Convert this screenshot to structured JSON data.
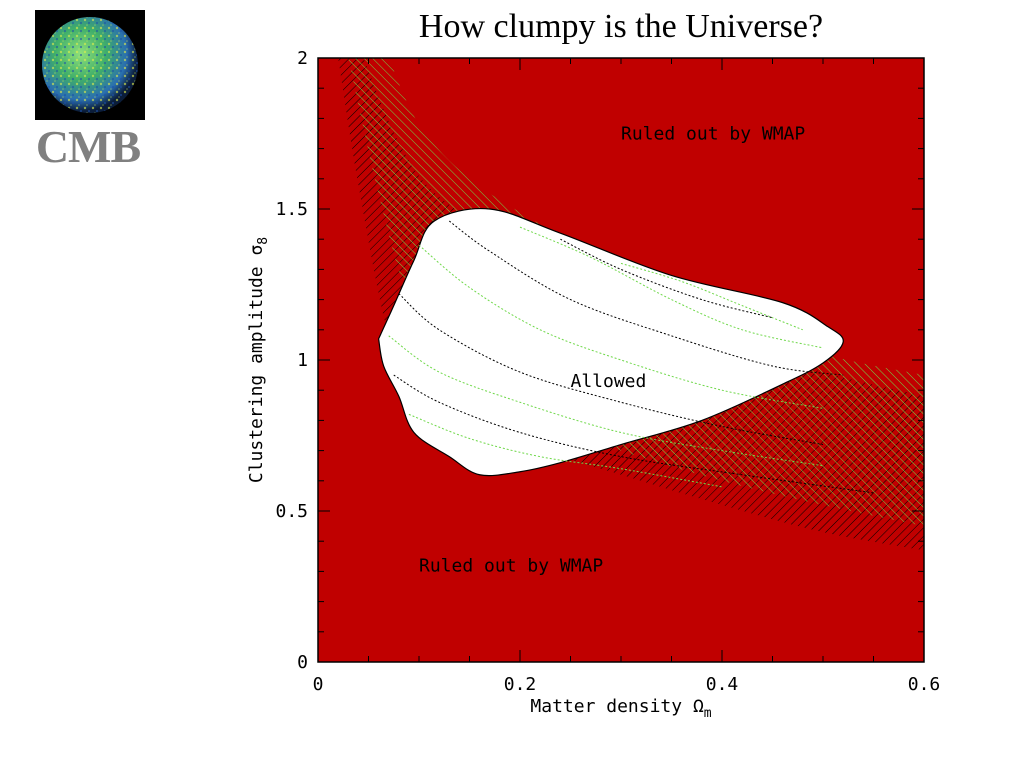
{
  "slide": {
    "title": "How clumpy is the Universe?",
    "logo_label": "CMB"
  },
  "colors": {
    "ruled_out": "#c00000",
    "allowed": "#ffffff",
    "hatch_black": "#000000",
    "hatch_green": "#6fd84a"
  },
  "chart_data": {
    "type": "area",
    "xlabel": "Matter density Ω",
    "xlabel_sub": "m",
    "ylabel": "Clustering amplitude σ",
    "ylabel_sub": "8",
    "xlim": [
      0,
      0.6
    ],
    "ylim": [
      0,
      2
    ],
    "x_ticks": [
      0,
      0.2,
      0.4,
      0.6
    ],
    "x_tick_labels": [
      "0",
      "0.2",
      "0.4",
      "0.6"
    ],
    "y_ticks": [
      0,
      0.5,
      1,
      1.5,
      2
    ],
    "y_tick_labels": [
      "0",
      "0.5",
      "1",
      "1.5",
      "2"
    ],
    "annotations": [
      {
        "text": "Ruled out by WMAP",
        "x": 0.3,
        "y": 1.73
      },
      {
        "text": "Ruled out by WMAP",
        "x": 0.1,
        "y": 0.3
      },
      {
        "text": "Allowed",
        "x": 0.25,
        "y": 0.91
      }
    ],
    "regions": [
      {
        "name": "Allowed",
        "fill": "#ffffff",
        "boundary": [
          [
            0.06,
            1.07
          ],
          [
            0.075,
            1.18
          ],
          [
            0.095,
            1.33
          ],
          [
            0.115,
            1.46
          ],
          [
            0.17,
            1.5
          ],
          [
            0.24,
            1.42
          ],
          [
            0.35,
            1.28
          ],
          [
            0.46,
            1.19
          ],
          [
            0.505,
            1.11
          ],
          [
            0.52,
            1.06
          ],
          [
            0.5,
            0.99
          ],
          [
            0.46,
            0.92
          ],
          [
            0.38,
            0.8
          ],
          [
            0.3,
            0.72
          ],
          [
            0.24,
            0.66
          ],
          [
            0.2,
            0.63
          ],
          [
            0.16,
            0.62
          ],
          [
            0.13,
            0.68
          ],
          [
            0.095,
            0.76
          ],
          [
            0.08,
            0.88
          ],
          [
            0.065,
            0.98
          ]
        ]
      }
    ],
    "bands": [
      {
        "name": "black hatched band",
        "lower": [
          [
            0.02,
            2.0
          ],
          [
            0.04,
            1.58
          ],
          [
            0.07,
            1.08
          ],
          [
            0.1,
            0.9
          ],
          [
            0.15,
            0.78
          ],
          [
            0.2,
            0.72
          ],
          [
            0.3,
            0.62
          ],
          [
            0.4,
            0.52
          ],
          [
            0.5,
            0.43
          ],
          [
            0.6,
            0.37
          ]
        ],
        "upper": [
          [
            0.045,
            2.0
          ],
          [
            0.08,
            1.72
          ],
          [
            0.12,
            1.54
          ],
          [
            0.2,
            1.38
          ],
          [
            0.3,
            1.2
          ],
          [
            0.4,
            1.06
          ],
          [
            0.5,
            0.96
          ],
          [
            0.6,
            0.88
          ]
        ]
      },
      {
        "name": "green hatched band",
        "lower": [
          [
            0.03,
            2.0
          ],
          [
            0.06,
            1.55
          ],
          [
            0.09,
            1.2
          ],
          [
            0.13,
            0.98
          ],
          [
            0.2,
            0.82
          ],
          [
            0.3,
            0.7
          ],
          [
            0.4,
            0.6
          ],
          [
            0.5,
            0.52
          ],
          [
            0.6,
            0.45
          ]
        ],
        "upper": [
          [
            0.07,
            2.0
          ],
          [
            0.1,
            1.78
          ],
          [
            0.15,
            1.6
          ],
          [
            0.22,
            1.45
          ],
          [
            0.3,
            1.3
          ],
          [
            0.4,
            1.14
          ],
          [
            0.5,
            1.02
          ],
          [
            0.6,
            0.95
          ]
        ]
      }
    ],
    "curves": [
      {
        "color": "black",
        "points": [
          [
            0.13,
            1.46
          ],
          [
            0.17,
            1.36
          ],
          [
            0.25,
            1.2
          ],
          [
            0.35,
            1.08
          ],
          [
            0.45,
            0.98
          ],
          [
            0.52,
            0.95
          ]
        ]
      },
      {
        "color": "green",
        "points": [
          [
            0.1,
            1.38
          ],
          [
            0.15,
            1.24
          ],
          [
            0.22,
            1.1
          ],
          [
            0.3,
            1.0
          ],
          [
            0.4,
            0.9
          ],
          [
            0.5,
            0.84
          ]
        ]
      },
      {
        "color": "black",
        "points": [
          [
            0.08,
            1.22
          ],
          [
            0.12,
            1.1
          ],
          [
            0.2,
            0.96
          ],
          [
            0.3,
            0.86
          ],
          [
            0.4,
            0.78
          ],
          [
            0.5,
            0.72
          ]
        ]
      },
      {
        "color": "green",
        "points": [
          [
            0.07,
            1.08
          ],
          [
            0.12,
            0.96
          ],
          [
            0.2,
            0.86
          ],
          [
            0.3,
            0.76
          ],
          [
            0.4,
            0.7
          ],
          [
            0.5,
            0.65
          ]
        ]
      },
      {
        "color": "black",
        "points": [
          [
            0.075,
            0.95
          ],
          [
            0.12,
            0.86
          ],
          [
            0.2,
            0.76
          ],
          [
            0.3,
            0.68
          ],
          [
            0.42,
            0.62
          ],
          [
            0.55,
            0.56
          ]
        ]
      },
      {
        "color": "green",
        "points": [
          [
            0.09,
            0.82
          ],
          [
            0.15,
            0.74
          ],
          [
            0.22,
            0.68
          ],
          [
            0.3,
            0.64
          ],
          [
            0.4,
            0.58
          ]
        ]
      },
      {
        "color": "green",
        "points": [
          [
            0.2,
            1.44
          ],
          [
            0.27,
            1.34
          ],
          [
            0.35,
            1.2
          ],
          [
            0.42,
            1.1
          ],
          [
            0.5,
            1.04
          ]
        ]
      },
      {
        "color": "black",
        "points": [
          [
            0.24,
            1.4
          ],
          [
            0.3,
            1.3
          ],
          [
            0.38,
            1.2
          ],
          [
            0.45,
            1.14
          ]
        ]
      },
      {
        "color": "green",
        "points": [
          [
            0.3,
            1.32
          ],
          [
            0.36,
            1.26
          ],
          [
            0.42,
            1.18
          ],
          [
            0.48,
            1.1
          ]
        ]
      }
    ]
  }
}
